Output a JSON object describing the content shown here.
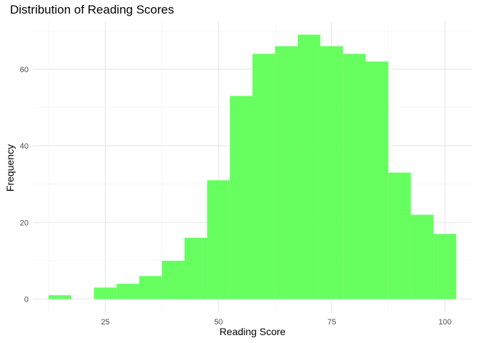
{
  "chart_data": {
    "type": "bar",
    "title": "Distribution of Reading Scores",
    "xlabel": "Reading Score",
    "ylabel": "Frequency",
    "bin_width": 5,
    "bins": [
      {
        "start": 12.5,
        "end": 17.5,
        "count": 1
      },
      {
        "start": 17.5,
        "end": 22.5,
        "count": 0
      },
      {
        "start": 22.5,
        "end": 27.5,
        "count": 3
      },
      {
        "start": 27.5,
        "end": 32.5,
        "count": 4
      },
      {
        "start": 32.5,
        "end": 37.5,
        "count": 6
      },
      {
        "start": 37.5,
        "end": 42.5,
        "count": 10
      },
      {
        "start": 42.5,
        "end": 47.5,
        "count": 16
      },
      {
        "start": 47.5,
        "end": 52.5,
        "count": 31
      },
      {
        "start": 52.5,
        "end": 57.5,
        "count": 53
      },
      {
        "start": 57.5,
        "end": 62.5,
        "count": 64
      },
      {
        "start": 62.5,
        "end": 67.5,
        "count": 66
      },
      {
        "start": 67.5,
        "end": 72.5,
        "count": 69
      },
      {
        "start": 72.5,
        "end": 77.5,
        "count": 66
      },
      {
        "start": 77.5,
        "end": 82.5,
        "count": 64
      },
      {
        "start": 82.5,
        "end": 87.5,
        "count": 62
      },
      {
        "start": 87.5,
        "end": 92.5,
        "count": 33
      },
      {
        "start": 92.5,
        "end": 97.5,
        "count": 22
      },
      {
        "start": 97.5,
        "end": 102.5,
        "count": 17
      }
    ],
    "xlim": [
      9.0,
      106.0
    ],
    "ylim": [
      -3.45,
      72.45
    ],
    "x_ticks": [
      25,
      50,
      75,
      100
    ],
    "y_ticks": [
      0,
      20,
      40,
      60
    ],
    "bar_color": "#5FFF57",
    "grid": true
  }
}
